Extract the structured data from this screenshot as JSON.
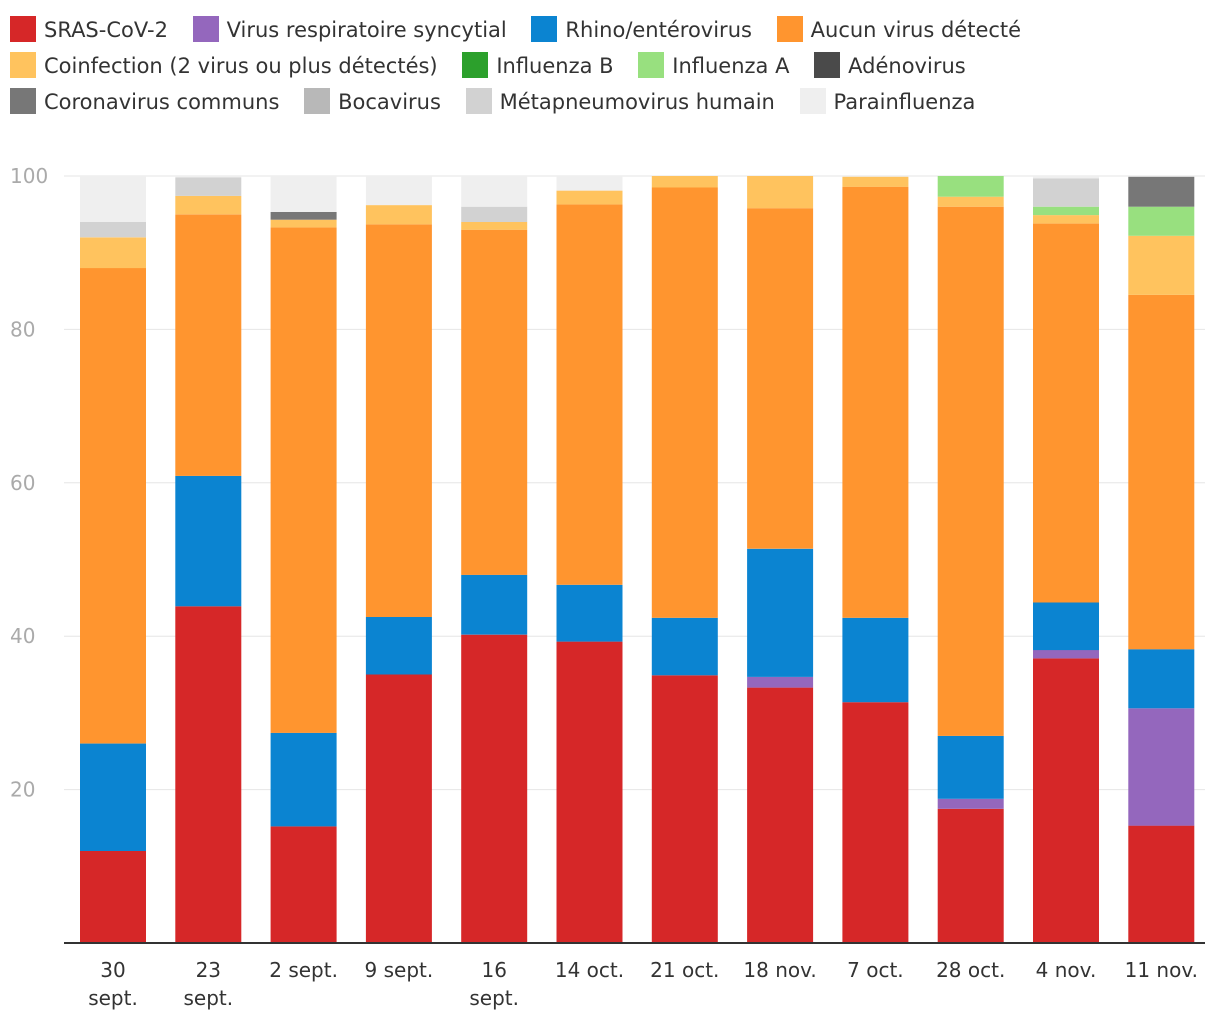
{
  "chart_data": {
    "type": "bar",
    "stacked": true,
    "title": "",
    "xlabel": "",
    "ylabel": "",
    "ylim": [
      0,
      100
    ],
    "yticks": [
      20,
      40,
      60,
      80,
      100
    ],
    "grid": true,
    "legend_position": "top",
    "categories": [
      [
        "30",
        "sept."
      ],
      [
        "23",
        "sept."
      ],
      [
        "2 sept."
      ],
      [
        "9 sept."
      ],
      [
        "16",
        "sept."
      ],
      [
        "14 oct."
      ],
      [
        "21 oct."
      ],
      [
        "18 nov."
      ],
      [
        "7 oct."
      ],
      [
        "28 oct."
      ],
      [
        "4 nov."
      ],
      [
        "11 nov."
      ]
    ],
    "series": [
      {
        "name": "SRAS-CoV-2",
        "color": "#d62728",
        "values": [
          12.0,
          43.9,
          15.2,
          35.0,
          40.2,
          39.3,
          34.9,
          33.3,
          31.4,
          17.5,
          37.1,
          15.3
        ]
      },
      {
        "name": "Virus respiratoire syncytial",
        "color": "#9467bd",
        "values": [
          0,
          0,
          0,
          0,
          0,
          0,
          0,
          1.4,
          0,
          1.3,
          1.1,
          15.3
        ]
      },
      {
        "name": "Rhino/entérovirus",
        "color": "#0b84d1",
        "values": [
          14.0,
          17.0,
          12.2,
          7.5,
          7.8,
          7.4,
          7.5,
          16.7,
          11.0,
          8.2,
          6.2,
          7.7
        ]
      },
      {
        "name": "Aucun virus détecté",
        "color": "#ff952f",
        "values": [
          62.0,
          34.1,
          65.9,
          51.2,
          45.0,
          49.6,
          56.1,
          44.4,
          56.2,
          69.0,
          49.4,
          46.2
        ]
      },
      {
        "name": "Coinfection (2 virus ou plus détectés)",
        "color": "#ffc35e",
        "values": [
          4.0,
          2.4,
          1.0,
          2.5,
          1.0,
          1.8,
          1.5,
          4.2,
          1.3,
          1.3,
          1.1,
          7.7
        ]
      },
      {
        "name": "Influenza B",
        "color": "#2ca02c",
        "values": [
          0,
          0,
          0,
          0,
          0,
          0,
          0,
          0,
          0,
          0,
          0,
          0
        ]
      },
      {
        "name": "Influenza A",
        "color": "#98e07f",
        "values": [
          0,
          0,
          0,
          0,
          0,
          0,
          0,
          0,
          0,
          2.7,
          1.1,
          3.8
        ]
      },
      {
        "name": "Adénovirus",
        "color": "#4a4a4a",
        "values": [
          0,
          0,
          0,
          0,
          0,
          0,
          0,
          0,
          0,
          0,
          0,
          0
        ]
      },
      {
        "name": "Coronavirus communs",
        "color": "#777777",
        "values": [
          0,
          0,
          1.0,
          0,
          0,
          0,
          0,
          0,
          0,
          0,
          0,
          3.9
        ]
      },
      {
        "name": "Bocavirus",
        "color": "#b8b8b8",
        "values": [
          0,
          0,
          0,
          0,
          0,
          0,
          0,
          0,
          0,
          0,
          0,
          0
        ]
      },
      {
        "name": "Métapneumovirus humain",
        "color": "#d2d2d2",
        "values": [
          2.0,
          2.4,
          0,
          0,
          2.0,
          0,
          0,
          0,
          0,
          0,
          3.7,
          0
        ]
      },
      {
        "name": "Parainfluenza",
        "color": "#efefef",
        "values": [
          6.0,
          0.2,
          4.7,
          3.8,
          4.0,
          1.9,
          0,
          0,
          0,
          0,
          0.3,
          0
        ]
      }
    ]
  }
}
